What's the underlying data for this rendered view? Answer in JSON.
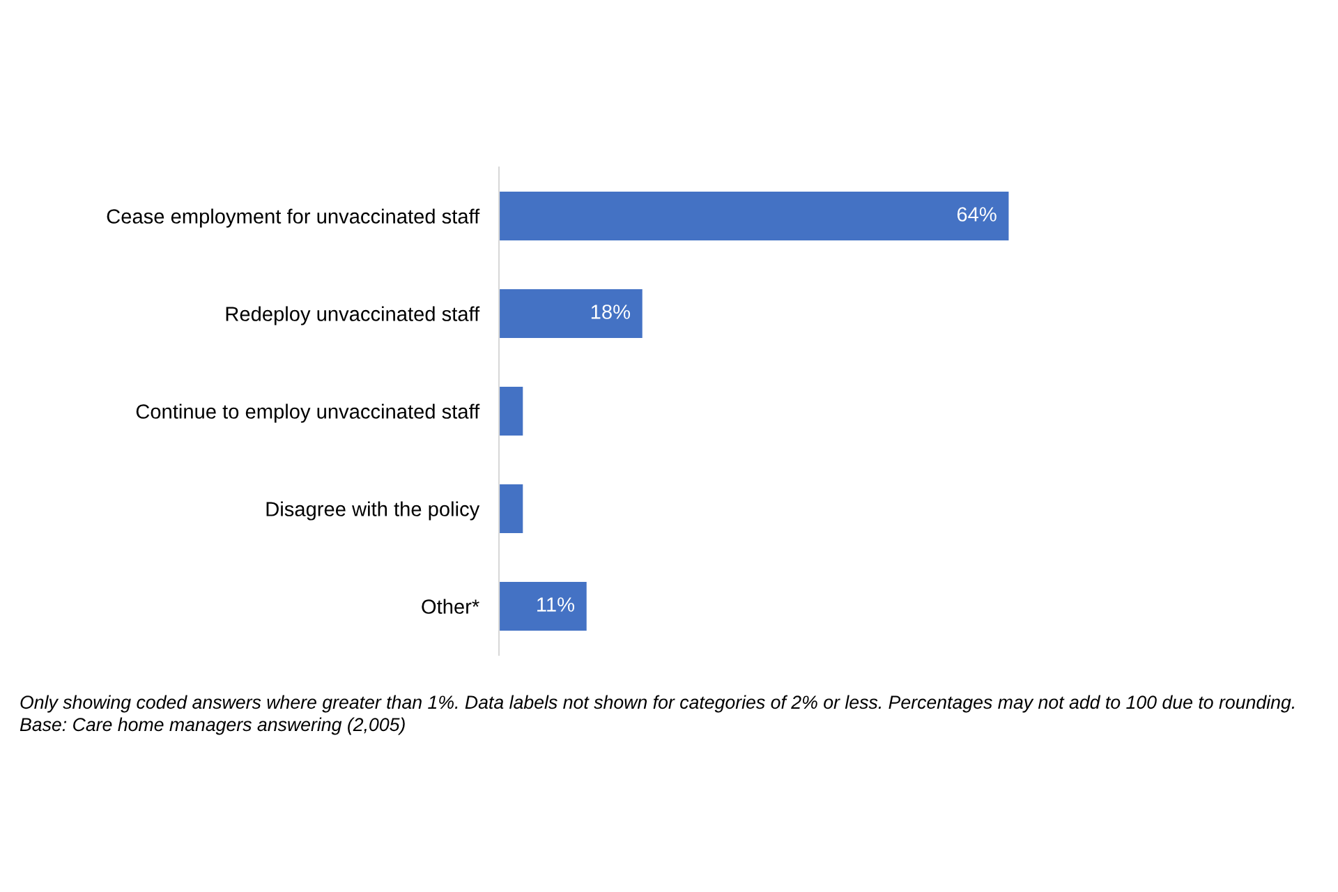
{
  "chart_data": {
    "type": "bar",
    "orientation": "horizontal",
    "categories": [
      "Cease employment for unvaccinated staff",
      "Redeploy unvaccinated staff",
      "Continue to employ unvaccinated staff",
      "Disagree with the policy",
      "Other*"
    ],
    "values": [
      64,
      18,
      3,
      3,
      11
    ],
    "value_labels": [
      "64%",
      "18%",
      null,
      null,
      "11%"
    ],
    "color": "#4472c4",
    "grid": false,
    "tick_labels": "y",
    "annotations": [
      "Only showing coded answers where greater than 1%. Data labels not shown for categories of 2% or less. Percentages may not add to 100 due to rounding.",
      "Base: Care home managers answering (2,005)"
    ]
  }
}
